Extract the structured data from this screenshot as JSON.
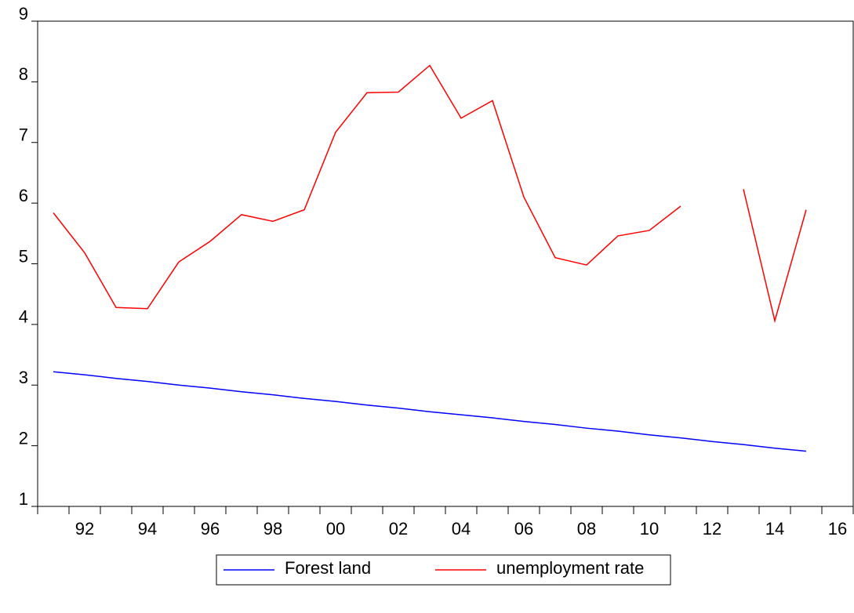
{
  "chart_data": {
    "type": "line",
    "categories": [
      null,
      "92",
      null,
      "94",
      null,
      "96",
      null,
      "98",
      null,
      "00",
      null,
      "02",
      null,
      "04",
      null,
      "06",
      null,
      "08",
      null,
      "10",
      null,
      "12",
      null,
      "14",
      null,
      "16"
    ],
    "series": [
      {
        "name": "Forest land",
        "color": "#0000ff",
        "values": [
          3.22,
          3.17,
          3.11,
          3.06,
          3.0,
          2.95,
          2.89,
          2.84,
          2.78,
          2.73,
          2.67,
          2.62,
          2.56,
          2.51,
          2.46,
          2.4,
          2.35,
          2.29,
          2.24,
          2.18,
          2.13,
          2.07,
          2.02,
          1.96,
          1.91,
          null
        ]
      },
      {
        "name": "unemployment rate",
        "color": "#ff0000",
        "values": [
          5.84,
          5.18,
          4.28,
          4.26,
          5.03,
          5.37,
          5.81,
          5.7,
          5.89,
          7.17,
          7.82,
          7.83,
          8.27,
          7.4,
          7.69,
          6.1,
          5.1,
          4.98,
          5.46,
          5.55,
          5.95,
          null,
          6.23,
          4.06,
          5.89,
          null
        ]
      }
    ],
    "ylim": [
      1,
      9
    ],
    "yticks": [
      1,
      2,
      3,
      4,
      5,
      6,
      7,
      8,
      9
    ]
  }
}
